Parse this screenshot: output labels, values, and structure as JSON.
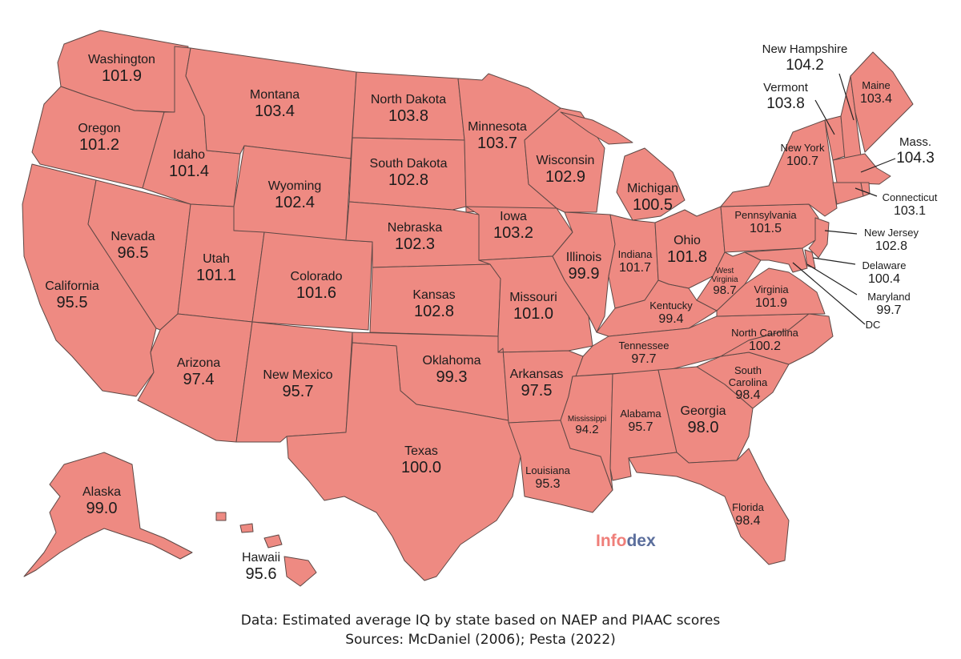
{
  "colors": {
    "state_fill": "#ee8a82",
    "border": "#5e4845",
    "brand_primary": "#ef7e79",
    "brand_secondary": "#5b6e9c"
  },
  "states": {
    "washington": {
      "name": "Washington",
      "value": "101.9"
    },
    "oregon": {
      "name": "Oregon",
      "value": "101.2"
    },
    "california": {
      "name": "California",
      "value": "95.5"
    },
    "idaho": {
      "name": "Idaho",
      "value": "101.4"
    },
    "nevada": {
      "name": "Nevada",
      "value": "96.5"
    },
    "montana": {
      "name": "Montana",
      "value": "103.4"
    },
    "wyoming": {
      "name": "Wyoming",
      "value": "102.4"
    },
    "utah": {
      "name": "Utah",
      "value": "101.1"
    },
    "colorado": {
      "name": "Colorado",
      "value": "101.6"
    },
    "arizona": {
      "name": "Arizona",
      "value": "97.4"
    },
    "new_mexico": {
      "name": "New Mexico",
      "value": "95.7"
    },
    "north_dakota": {
      "name": "North Dakota",
      "value": "103.8"
    },
    "south_dakota": {
      "name": "South Dakota",
      "value": "102.8"
    },
    "nebraska": {
      "name": "Nebraska",
      "value": "102.3"
    },
    "kansas": {
      "name": "Kansas",
      "value": "102.8"
    },
    "oklahoma": {
      "name": "Oklahoma",
      "value": "99.3"
    },
    "texas": {
      "name": "Texas",
      "value": "100.0"
    },
    "minnesota": {
      "name": "Minnesota",
      "value": "103.7"
    },
    "iowa": {
      "name": "Iowa",
      "value": "103.2"
    },
    "missouri": {
      "name": "Missouri",
      "value": "101.0"
    },
    "arkansas": {
      "name": "Arkansas",
      "value": "97.5"
    },
    "louisiana": {
      "name": "Louisiana",
      "value": "95.3"
    },
    "wisconsin": {
      "name": "Wisconsin",
      "value": "102.9"
    },
    "illinois": {
      "name": "Illinois",
      "value": "99.9"
    },
    "michigan": {
      "name": "Michigan",
      "value": "100.5"
    },
    "indiana": {
      "name": "Indiana",
      "value": "101.7"
    },
    "ohio": {
      "name": "Ohio",
      "value": "101.8"
    },
    "kentucky": {
      "name": "Kentucky",
      "value": "99.4"
    },
    "tennessee": {
      "name": "Tennessee",
      "value": "97.7"
    },
    "mississippi": {
      "name": "Mississippi",
      "value": "94.2"
    },
    "alabama": {
      "name": "Alabama",
      "value": "95.7"
    },
    "georgia": {
      "name": "Georgia",
      "value": "98.0"
    },
    "florida": {
      "name": "Florida",
      "value": "98.4"
    },
    "south_carolina": {
      "name": "South Carolina",
      "value": "98.4"
    },
    "north_carolina": {
      "name": "North Carolina",
      "value": "100.2"
    },
    "virginia": {
      "name": "Virginia",
      "value": "101.9"
    },
    "west_virginia": {
      "name": "West Virginia",
      "value": "98.7"
    },
    "pennsylvania": {
      "name": "Pennsylvania",
      "value": "101.5"
    },
    "new_york": {
      "name": "New York",
      "value": "100.7"
    },
    "vermont": {
      "name": "Vermont",
      "value": "103.8"
    },
    "new_hampshire": {
      "name": "New Hampshire",
      "value": "104.2"
    },
    "maine": {
      "name": "Maine",
      "value": "103.4"
    },
    "massachusetts": {
      "name": "Mass.",
      "value": "104.3"
    },
    "connecticut": {
      "name": "Connecticut",
      "value": "103.1"
    },
    "new_jersey": {
      "name": "New Jersey",
      "value": "102.8"
    },
    "delaware": {
      "name": "Delaware",
      "value": "100.4"
    },
    "maryland": {
      "name": "Maryland",
      "value": "99.7"
    },
    "dc": {
      "name": "DC",
      "value": ""
    },
    "alaska": {
      "name": "Alaska",
      "value": "99.0"
    },
    "hawaii": {
      "name": "Hawaii",
      "value": "95.6"
    }
  },
  "brand": {
    "part1": "Info",
    "part2": "dex"
  },
  "caption": {
    "line1": "Data: Estimated average IQ by state based on NAEP and PIAAC scores",
    "line2": "Sources: McDaniel (2006); Pesta (2022)"
  }
}
